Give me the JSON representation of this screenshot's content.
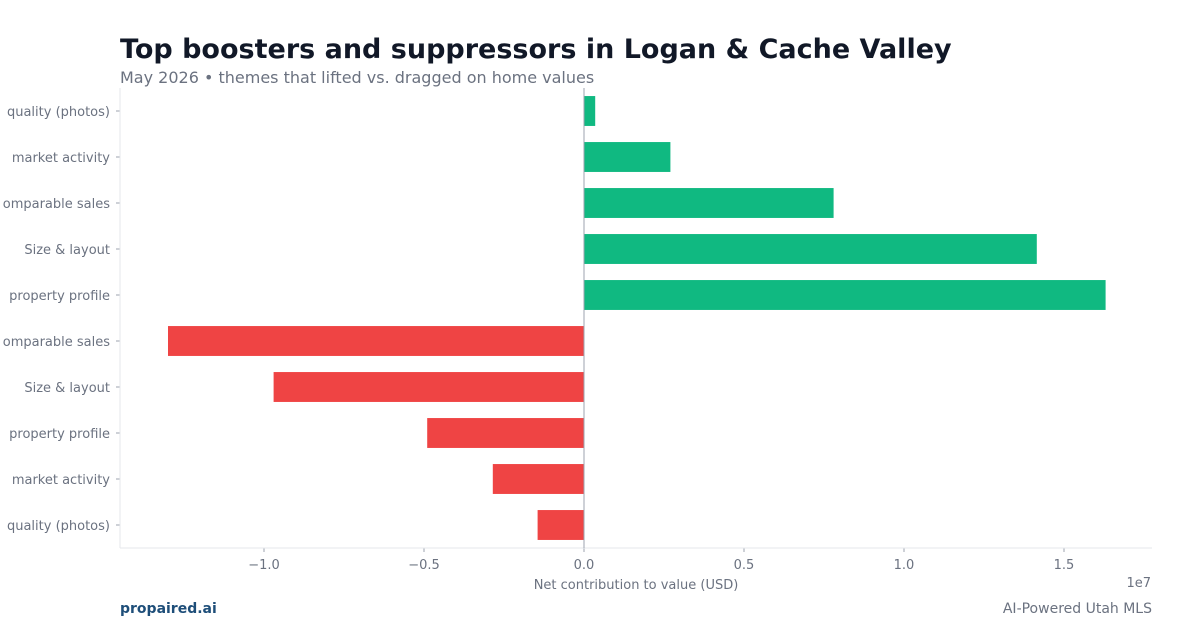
{
  "header": {
    "title": "Top boosters and suppressors in Logan & Cache Valley",
    "subtitle": "May 2026 • themes that lifted vs. dragged on home values"
  },
  "footer": {
    "brand": "propaired.ai",
    "tagline": "AI-Powered Utah MLS"
  },
  "colors": {
    "positive": "#10b981",
    "negative": "#ef4444",
    "axis": "#9ca3af",
    "text": "#6b7280"
  },
  "chart_data": {
    "type": "bar",
    "orientation": "horizontal",
    "categories": [
      "quality (photos)",
      "market activity",
      "omparable sales",
      "Size & layout",
      "property profile",
      "omparable sales",
      "Size & layout",
      "property profile",
      "market activity",
      "quality (photos)"
    ],
    "values": [
      350000,
      2700000,
      7800000,
      14150000,
      16300000,
      -13000000,
      -9700000,
      -4900000,
      -2850000,
      -1450000
    ],
    "xlabel": "Net contribution to value (USD)",
    "ylabel": "",
    "xlim": [
      -14500000,
      17750000
    ],
    "xticks": [
      -10000000,
      -5000000,
      0,
      5000000,
      10000000,
      15000000
    ],
    "xtick_labels": [
      "−1.0",
      "−0.5",
      "0.0",
      "0.5",
      "1.0",
      "1.5"
    ],
    "x_offset_label": "1e7",
    "grid": false
  }
}
